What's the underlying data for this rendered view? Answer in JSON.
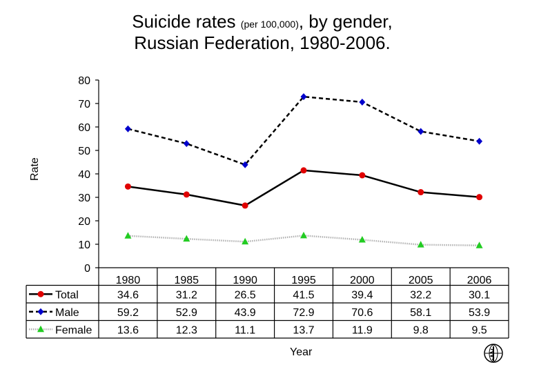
{
  "title_main": "Suicide rates",
  "title_unit": "(per 100,000)",
  "title_rest": ", by gender,",
  "title_line2": "Russian Federation, 1980-2006.",
  "chart_data": {
    "type": "line",
    "categories": [
      "1980",
      "1985",
      "1990",
      "1995",
      "2000",
      "2005",
      "2006"
    ],
    "series": [
      {
        "name": "Total",
        "values": [
          34.6,
          31.2,
          26.5,
          41.5,
          39.4,
          32.2,
          30.1
        ],
        "color": "#e00000",
        "marker": "circle",
        "line": "solid"
      },
      {
        "name": "Male",
        "values": [
          59.2,
          52.9,
          43.9,
          72.9,
          70.6,
          58.1,
          53.9
        ],
        "color": "#0000cc",
        "marker": "diamond",
        "line": "dashed"
      },
      {
        "name": "Female",
        "values": [
          13.6,
          12.3,
          11.1,
          13.7,
          11.9,
          9.8,
          9.5
        ],
        "color": "#22cc22",
        "marker": "triangle",
        "line": "dotted-gray"
      }
    ],
    "ylabel": "Rate",
    "xlabel": "Year",
    "ylim": [
      0,
      80
    ],
    "yticks": [
      "0",
      "10",
      "20",
      "30",
      "40",
      "50",
      "60",
      "70",
      "80"
    ],
    "data_table": true,
    "grid": false
  },
  "logo_icon": "who-emblem-icon"
}
